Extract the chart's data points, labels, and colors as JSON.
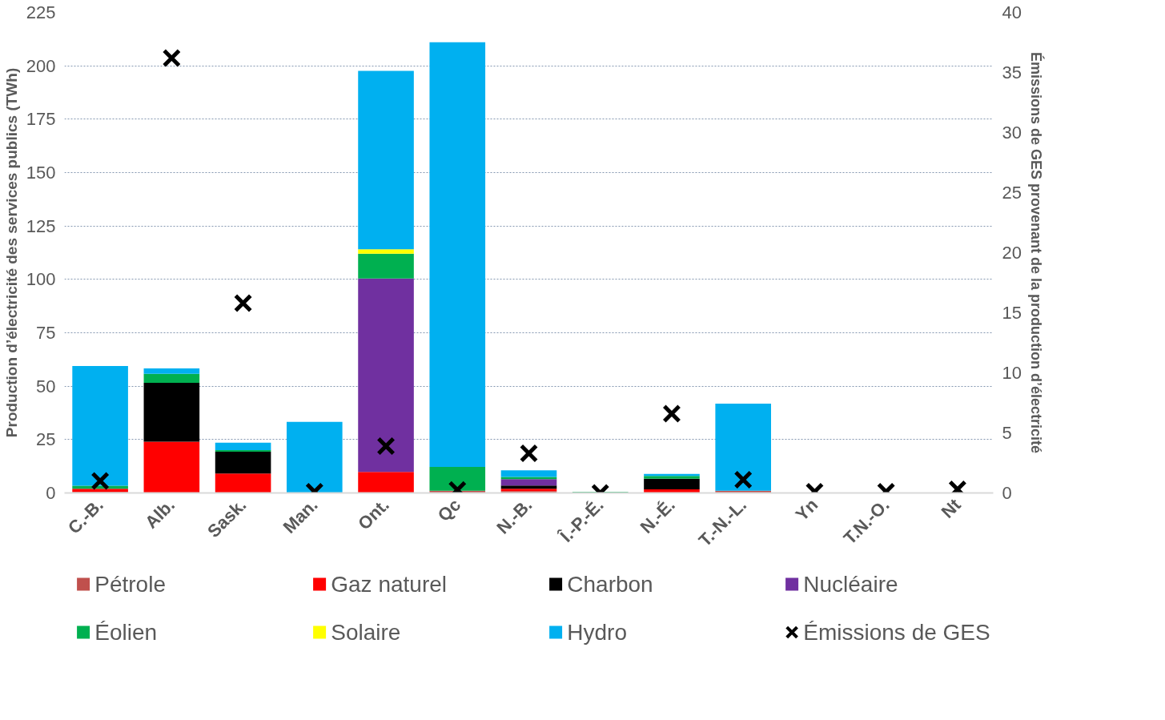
{
  "chart_data": {
    "type": "bar",
    "stacked": true,
    "categories": [
      "C.-B.",
      "Alb.",
      "Sask.",
      "Man.",
      "Ont.",
      "Qc",
      "N.-B.",
      "Î.-P.-É.",
      "N.-É.",
      "T.-N.-L.",
      "Yn",
      "T.N.-O.",
      "Nt"
    ],
    "ylabel": "Production d’électricité des services publics (TWh)",
    "y2label": "Émissions de GES provenant de la production d’électricité",
    "ylim": [
      0,
      225
    ],
    "yticks": [
      0,
      25,
      50,
      75,
      100,
      125,
      150,
      175,
      200,
      225
    ],
    "y2lim": [
      0,
      40
    ],
    "y2ticks": [
      0,
      5,
      10,
      15,
      20,
      25,
      30,
      35,
      40
    ],
    "grid": "y",
    "legend": "bottom",
    "series": [
      {
        "name": "Pétrole",
        "color": "#c0504d",
        "values": [
          0.5,
          0,
          0,
          0,
          0,
          1,
          0.8,
          0,
          null,
          1,
          0,
          0,
          0.2
        ]
      },
      {
        "name": "Gaz naturel",
        "color": "#ff0000",
        "values": [
          1.5,
          24,
          9.1,
          0,
          9.8,
          0,
          1.2,
          0,
          1.7,
          0,
          0,
          0,
          0
        ]
      },
      {
        "name": "Charbon",
        "color": "#000000",
        "values": [
          0,
          27.6,
          10.2,
          0,
          0,
          0,
          1.5,
          0,
          5,
          0,
          0,
          0,
          0
        ]
      },
      {
        "name": "Nucléaire",
        "color": "#7030a0",
        "values": [
          0,
          0,
          0,
          0,
          90.6,
          0,
          3,
          0,
          0,
          0,
          0,
          0,
          0
        ]
      },
      {
        "name": "Éolien",
        "color": "#00b050",
        "values": [
          1.4,
          4.2,
          0.8,
          null,
          11.6,
          11.2,
          1,
          0.5,
          1.3,
          0,
          0,
          0,
          0
        ]
      },
      {
        "name": "Solaire",
        "color": "#ffff00",
        "values": [
          0,
          0,
          0,
          0,
          2.1,
          0,
          0,
          0,
          0,
          0,
          0,
          0,
          0
        ]
      },
      {
        "name": "Hydro",
        "color": "#00b0f0",
        "values": [
          56,
          2.5,
          3.4,
          33.3,
          83.5,
          198.8,
          3.1,
          0,
          0.9,
          40.8,
          null,
          null,
          0
        ]
      },
      {
        "name": "Émissions de GES",
        "color": "#000000",
        "type": "scatter",
        "axis": "y2",
        "marker": "cross",
        "values": [
          1.0,
          36.2,
          15.8,
          0.1,
          3.9,
          0.25,
          3.3,
          0.0,
          6.6,
          1.1,
          0.1,
          0.1,
          0.3
        ]
      }
    ]
  }
}
